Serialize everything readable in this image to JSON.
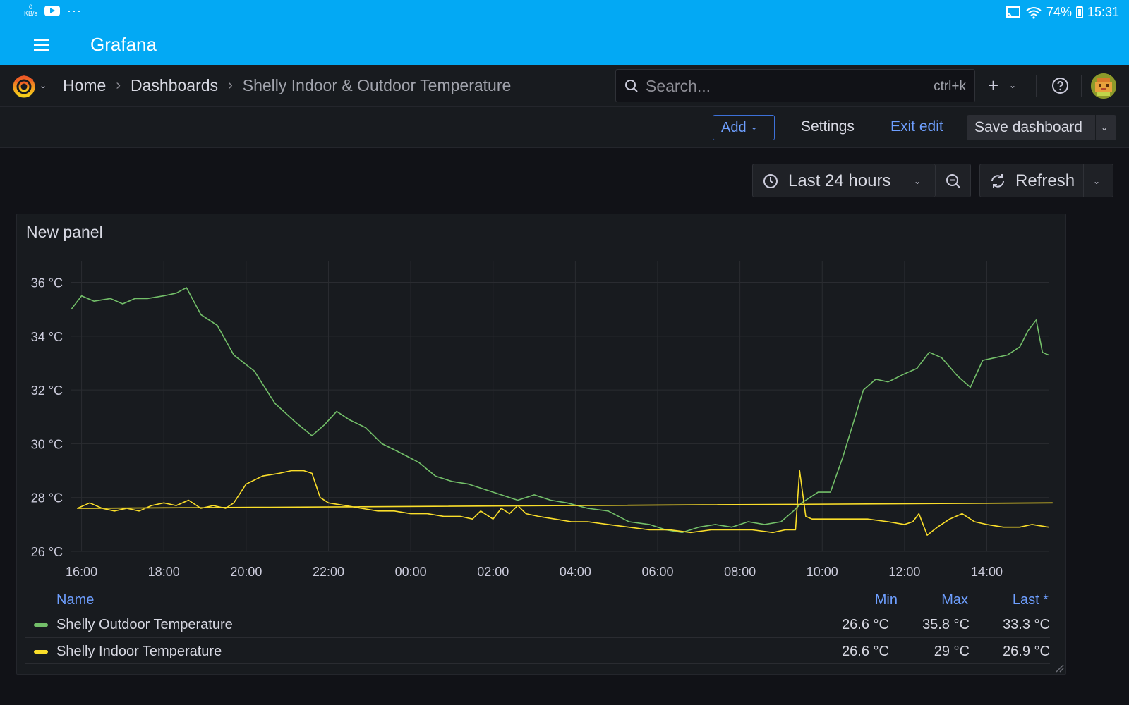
{
  "statusbar": {
    "kbs_value": "0",
    "kbs_unit": "KB/s",
    "overflow": "···",
    "battery": "74%",
    "time": "15:31"
  },
  "appbar": {
    "title": "Grafana"
  },
  "breadcrumb": {
    "home": "Home",
    "dashboards": "Dashboards",
    "current": "Shelly Indoor & Outdoor Temperature"
  },
  "search": {
    "placeholder": "Search...",
    "shortcut": "ctrl+k"
  },
  "toolbar": {
    "add_label": "Add",
    "settings_label": "Settings",
    "exit_label": "Exit edit",
    "save_label": "Save dashboard"
  },
  "time": {
    "range_label": "Last 24 hours",
    "refresh_label": "Refresh"
  },
  "panel": {
    "title": "New panel",
    "legend": {
      "name_header": "Name",
      "min_header": "Min",
      "max_header": "Max",
      "last_header": "Last *",
      "rows": [
        {
          "name": "Shelly Outdoor Temperature",
          "min": "26.6 °C",
          "max": "35.8 °C",
          "last": "33.3 °C",
          "color": "#73bf69"
        },
        {
          "name": "Shelly Indoor Temperature",
          "min": "26.6 °C",
          "max": "29 °C",
          "last": "26.9 °C",
          "color": "#fade2a"
        }
      ]
    }
  },
  "chart_data": {
    "type": "line",
    "title": "New panel",
    "xlabel": "",
    "ylabel": "",
    "x_ticks": [
      "16:00",
      "18:00",
      "20:00",
      "22:00",
      "00:00",
      "02:00",
      "04:00",
      "06:00",
      "08:00",
      "10:00",
      "12:00",
      "14:00"
    ],
    "y_ticks": [
      "26 °C",
      "28 °C",
      "30 °C",
      "32 °C",
      "34 °C",
      "36 °C"
    ],
    "x_range_hours": [
      15.75,
      15.5
    ],
    "ylim": [
      26,
      36.8
    ],
    "grid": true,
    "legend_placement": "bottom-table",
    "series": [
      {
        "name": "Shelly Outdoor Temperature",
        "color": "#73bf69",
        "x_hours": [
          15.75,
          16.0,
          16.3,
          16.7,
          17.0,
          17.3,
          17.6,
          18.0,
          18.3,
          18.55,
          18.9,
          19.3,
          19.7,
          20.2,
          20.7,
          21.2,
          21.6,
          21.9,
          22.2,
          22.5,
          22.9,
          23.3,
          23.7,
          0.2,
          0.6,
          1.0,
          1.4,
          1.8,
          2.2,
          2.6,
          3.0,
          3.4,
          3.8,
          4.3,
          4.8,
          5.3,
          5.8,
          6.2,
          6.6,
          7.0,
          7.4,
          7.8,
          8.2,
          8.6,
          9.0,
          9.3,
          9.5,
          9.7,
          9.9,
          10.2,
          10.5,
          10.8,
          11.0,
          11.3,
          11.6,
          12.0,
          12.3,
          12.6,
          12.9,
          13.3,
          13.6,
          13.9,
          14.2,
          14.5,
          14.8,
          15.0,
          15.2,
          15.35,
          15.5
        ],
        "values": [
          35.0,
          35.5,
          35.3,
          35.4,
          35.2,
          35.4,
          35.4,
          35.5,
          35.6,
          35.8,
          34.8,
          34.4,
          33.3,
          32.7,
          31.5,
          30.8,
          30.3,
          30.7,
          31.2,
          30.9,
          30.6,
          30.0,
          29.7,
          29.3,
          28.8,
          28.6,
          28.5,
          28.3,
          28.1,
          27.9,
          28.1,
          27.9,
          27.8,
          27.6,
          27.5,
          27.1,
          27.0,
          26.8,
          26.7,
          26.9,
          27.0,
          26.9,
          27.1,
          27.0,
          27.1,
          27.5,
          27.8,
          28.0,
          28.2,
          28.2,
          29.5,
          31.0,
          32.0,
          32.4,
          32.3,
          32.6,
          32.8,
          33.4,
          33.2,
          32.5,
          32.1,
          33.1,
          33.2,
          33.3,
          33.6,
          34.2,
          34.6,
          33.4,
          33.3
        ]
      },
      {
        "name": "Shelly Indoor Temperature",
        "color": "#fade2a",
        "x_hours": [
          15.6,
          15.9,
          16.2,
          16.5,
          16.8,
          17.1,
          17.4,
          17.7,
          18.0,
          18.3,
          18.6,
          18.9,
          19.2,
          19.5,
          19.7,
          20.0,
          20.4,
          20.8,
          21.1,
          21.4,
          21.6,
          21.8,
          22.0,
          22.4,
          22.8,
          23.2,
          23.6,
          0.0,
          0.4,
          0.8,
          1.2,
          1.5,
          1.7,
          2.0,
          2.2,
          2.4,
          2.6,
          2.8,
          3.1,
          3.5,
          3.9,
          4.3,
          4.8,
          5.3,
          5.8,
          6.3,
          6.8,
          7.3,
          7.8,
          8.3,
          8.8,
          9.1,
          9.35,
          9.45,
          9.6,
          9.75,
          10.1,
          10.6,
          11.1,
          11.6,
          12.0,
          12.2,
          12.35,
          12.55,
          12.8,
          13.1,
          13.4,
          13.7,
          14.0,
          14.4,
          14.8,
          15.1,
          15.5
        ],
        "values": [
          27.8,
          27.6,
          27.8,
          27.6,
          27.5,
          27.6,
          27.5,
          27.7,
          27.8,
          27.7,
          27.9,
          27.6,
          27.7,
          27.6,
          27.8,
          28.5,
          28.8,
          28.9,
          29.0,
          29.0,
          28.9,
          28.0,
          27.8,
          27.7,
          27.6,
          27.5,
          27.5,
          27.4,
          27.4,
          27.3,
          27.3,
          27.2,
          27.5,
          27.2,
          27.6,
          27.4,
          27.7,
          27.4,
          27.3,
          27.2,
          27.1,
          27.1,
          27.0,
          26.9,
          26.8,
          26.8,
          26.7,
          26.8,
          26.8,
          26.8,
          26.7,
          26.8,
          26.8,
          29.0,
          27.3,
          27.2,
          27.2,
          27.2,
          27.2,
          27.1,
          27.0,
          27.1,
          27.4,
          26.6,
          26.9,
          27.2,
          27.4,
          27.1,
          27.0,
          26.9,
          26.9,
          27.0,
          26.9
        ]
      }
    ]
  }
}
